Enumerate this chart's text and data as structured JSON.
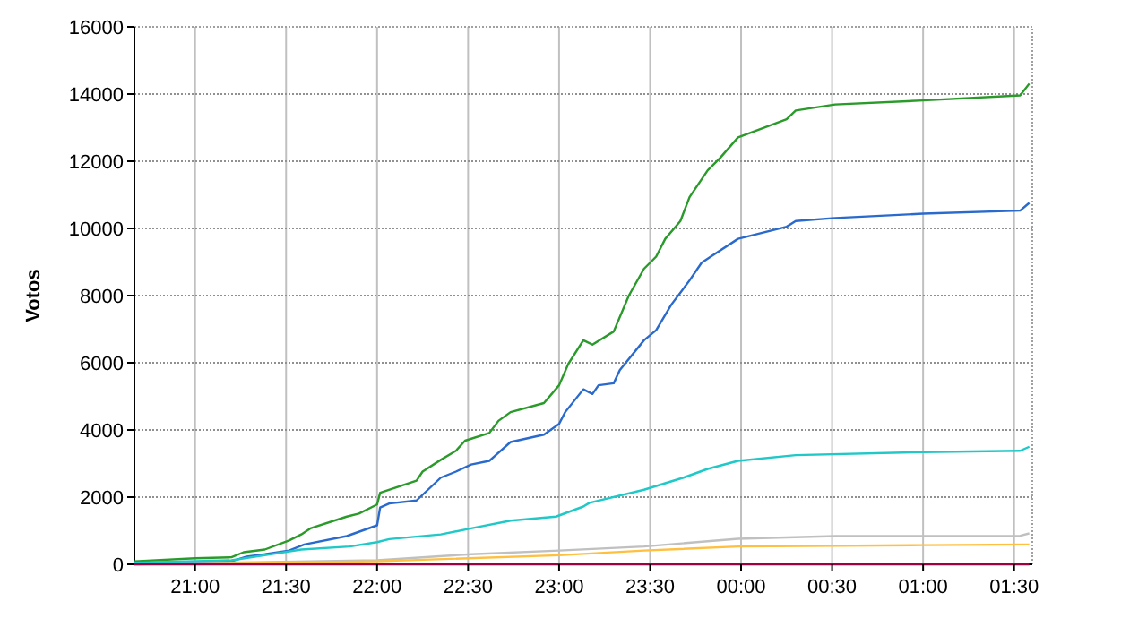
{
  "chart_data": {
    "type": "line",
    "ylabel": "Votos",
    "xlim": [
      "2000-01-01T20:40",
      "2000-01-02T01:36"
    ],
    "xticks": [
      {
        "value": "2000-01-01T21:00",
        "label": "21:00"
      },
      {
        "value": "2000-01-01T21:30",
        "label": "21:30"
      },
      {
        "value": "2000-01-01T22:00",
        "label": "22:00"
      },
      {
        "value": "2000-01-01T22:30",
        "label": "22:30"
      },
      {
        "value": "2000-01-01T23:00",
        "label": "23:00"
      },
      {
        "value": "2000-01-01T23:30",
        "label": "23:30"
      },
      {
        "value": "2000-01-02T00:00",
        "label": "00:00"
      },
      {
        "value": "2000-01-02T00:30",
        "label": "00:30"
      },
      {
        "value": "2000-01-02T01:00",
        "label": "01:00"
      },
      {
        "value": "2000-01-02T01:30",
        "label": "01:30"
      }
    ],
    "ylim": [
      0,
      16000
    ],
    "yticks": [
      0,
      2000,
      4000,
      6000,
      8000,
      10000,
      12000,
      14000,
      16000
    ],
    "grid": true,
    "marker": "none",
    "line_style": "solid",
    "series": [
      {
        "color": "#2a9a2a",
        "x": [
          "2000-01-01T20:40",
          "2000-01-01T21:00",
          "2000-01-01T21:12",
          "2000-01-01T21:16",
          "2000-01-01T21:23",
          "2000-01-01T21:31",
          "2000-01-01T21:35",
          "2000-01-01T21:38",
          "2000-01-01T21:50",
          "2000-01-01T21:54",
          "2000-01-01T22:00",
          "2000-01-01T22:01",
          "2000-01-01T22:13",
          "2000-01-01T22:15",
          "2000-01-01T22:21",
          "2000-01-01T22:26",
          "2000-01-01T22:29",
          "2000-01-01T22:37",
          "2000-01-01T22:40",
          "2000-01-01T22:44",
          "2000-01-01T22:55",
          "2000-01-01T23:00",
          "2000-01-01T23:03",
          "2000-01-01T23:08",
          "2000-01-01T23:11",
          "2000-01-01T23:18",
          "2000-01-01T23:23",
          "2000-01-01T23:28",
          "2000-01-01T23:32",
          "2000-01-01T23:35",
          "2000-01-01T23:40",
          "2000-01-01T23:43",
          "2000-01-01T23:49",
          "2000-01-01T23:53",
          "2000-01-01T23:59",
          "2000-01-02T00:15",
          "2000-01-02T00:18",
          "2000-01-02T00:31",
          "2000-01-02T01:00",
          "2000-01-02T01:32",
          "2000-01-02T01:35"
        ],
        "values": [
          90,
          180,
          210,
          360,
          440,
          710,
          890,
          1070,
          1420,
          1510,
          1780,
          2130,
          2490,
          2760,
          3110,
          3380,
          3680,
          3910,
          4270,
          4530,
          4800,
          5330,
          5960,
          6670,
          6540,
          6930,
          8000,
          8800,
          9160,
          9690,
          10220,
          10930,
          11730,
          12090,
          12710,
          13250,
          13510,
          13690,
          13810,
          13960,
          14310
        ]
      },
      {
        "color": "#2a6acc",
        "x": [
          "2000-01-01T20:40",
          "2000-01-01T21:12",
          "2000-01-01T21:17",
          "2000-01-01T21:23",
          "2000-01-01T21:31",
          "2000-01-01T21:36",
          "2000-01-01T21:50",
          "2000-01-01T22:00",
          "2000-01-01T22:01",
          "2000-01-01T22:04",
          "2000-01-01T22:13",
          "2000-01-01T22:21",
          "2000-01-01T22:26",
          "2000-01-01T22:31",
          "2000-01-01T22:37",
          "2000-01-01T22:44",
          "2000-01-01T22:55",
          "2000-01-01T23:00",
          "2000-01-01T23:02",
          "2000-01-01T23:08",
          "2000-01-01T23:11",
          "2000-01-01T23:13",
          "2000-01-01T23:18",
          "2000-01-01T23:20",
          "2000-01-01T23:28",
          "2000-01-01T23:32",
          "2000-01-01T23:37",
          "2000-01-01T23:43",
          "2000-01-01T23:47",
          "2000-01-01T23:50",
          "2000-01-01T23:59",
          "2000-01-02T00:15",
          "2000-01-02T00:18",
          "2000-01-02T00:31",
          "2000-01-02T01:00",
          "2000-01-02T01:32",
          "2000-01-02T01:35"
        ],
        "values": [
          50,
          90,
          230,
          300,
          410,
          590,
          840,
          1160,
          1690,
          1810,
          1900,
          2580,
          2760,
          2970,
          3080,
          3640,
          3860,
          4180,
          4530,
          5210,
          5070,
          5330,
          5390,
          5780,
          6670,
          6970,
          7730,
          8450,
          8980,
          9160,
          9690,
          10050,
          10220,
          10310,
          10440,
          10530,
          10760
        ]
      },
      {
        "color": "#20c8c8",
        "x": [
          "2000-01-01T20:40",
          "2000-01-01T21:12",
          "2000-01-01T21:23",
          "2000-01-01T21:35",
          "2000-01-01T21:51",
          "2000-01-01T22:00",
          "2000-01-01T22:04",
          "2000-01-01T22:21",
          "2000-01-01T22:31",
          "2000-01-01T22:44",
          "2000-01-01T22:59",
          "2000-01-01T23:08",
          "2000-01-01T23:10",
          "2000-01-01T23:28",
          "2000-01-01T23:41",
          "2000-01-01T23:49",
          "2000-01-01T23:59",
          "2000-01-02T00:18",
          "2000-01-02T01:00",
          "2000-01-02T01:32",
          "2000-01-02T01:35"
        ],
        "values": [
          50,
          120,
          270,
          440,
          530,
          660,
          750,
          890,
          1070,
          1300,
          1420,
          1720,
          1830,
          2220,
          2580,
          2840,
          3080,
          3250,
          3340,
          3380,
          3500
        ]
      },
      {
        "color": "#c0c0c0",
        "x": [
          "2000-01-01T20:40",
          "2000-01-01T22:00",
          "2000-01-01T22:31",
          "2000-01-01T23:00",
          "2000-01-01T23:28",
          "2000-01-01T23:59",
          "2000-01-02T00:31",
          "2000-01-02T01:32",
          "2000-01-02T01:35"
        ],
        "values": [
          0,
          120,
          300,
          410,
          530,
          760,
          840,
          850,
          920
        ]
      },
      {
        "color": "#ffc040",
        "x": [
          "2000-01-01T20:40",
          "2000-01-01T22:00",
          "2000-01-01T23:00",
          "2000-01-01T23:28",
          "2000-01-01T23:59",
          "2000-01-02T01:00",
          "2000-01-02T01:35"
        ],
        "values": [
          0,
          90,
          270,
          410,
          530,
          570,
          590
        ]
      },
      {
        "color": "#a00040",
        "x": [
          "2000-01-01T20:40",
          "2000-01-02T01:35"
        ],
        "values": [
          0,
          0
        ]
      }
    ]
  }
}
